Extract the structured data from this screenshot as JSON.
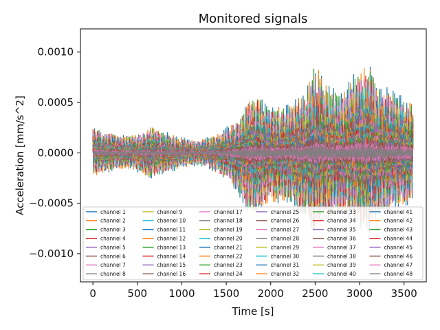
{
  "chart_data": {
    "type": "line",
    "title": "Monitored signals",
    "xlabel": "Time [s]",
    "ylabel": "Acceleration [mm/s^2]",
    "xlim": [
      -140,
      3750
    ],
    "ylim": [
      -0.00128,
      0.00123
    ],
    "xticks": [
      0,
      500,
      1000,
      1500,
      2000,
      2500,
      3000,
      3500
    ],
    "xtick_labels": [
      "0",
      "500",
      "1000",
      "1500",
      "2000",
      "2500",
      "3000",
      "3500"
    ],
    "yticks": [
      0.001,
      0.0005,
      0.0,
      -0.0005,
      -0.001
    ],
    "ytick_labels": [
      "0.0010",
      "0.0005",
      "0.0000",
      "−0.0005",
      "−0.0010"
    ],
    "grid": false,
    "legend_position": "lower center",
    "x_range": [
      0,
      3600
    ],
    "envelope": {
      "x": [
        0,
        200,
        400,
        550,
        650,
        800,
        1000,
        1200,
        1400,
        1550,
        1650,
        1750,
        1850,
        2000,
        2200,
        2400,
        2500,
        2600,
        2800,
        3000,
        3100,
        3200,
        3400,
        3600
      ],
      "upper": [
        0.00025,
        0.0002,
        0.00016,
        0.0002,
        0.00026,
        0.0002,
        0.00014,
        0.00012,
        0.00018,
        0.00028,
        0.00034,
        0.00052,
        0.00058,
        0.00045,
        0.00048,
        0.0006,
        0.00095,
        0.0007,
        0.0006,
        0.00085,
        0.0009,
        0.0007,
        0.0006,
        0.0005
      ],
      "lower": [
        -0.00022,
        -0.00018,
        -0.00015,
        -0.0002,
        -0.00026,
        -0.0002,
        -0.00014,
        -0.00012,
        -0.0002,
        -0.0003,
        -0.00045,
        -0.00062,
        -0.0006,
        -0.0005,
        -0.0005,
        -0.00065,
        -0.00085,
        -0.00068,
        -0.0006,
        -0.00075,
        -0.0008,
        -0.00065,
        -0.00055,
        -0.0005
      ]
    },
    "series": [
      {
        "name": "channel 1",
        "color": "#1f77b4",
        "amp": 1.0
      },
      {
        "name": "channel 2",
        "color": "#ff7f0e",
        "amp": 0.96
      },
      {
        "name": "channel 3",
        "color": "#2ca02c",
        "amp": 0.92
      },
      {
        "name": "channel 4",
        "color": "#d62728",
        "amp": 0.88
      },
      {
        "name": "channel 5",
        "color": "#9467bd",
        "amp": 0.85
      },
      {
        "name": "channel 6",
        "color": "#8c564b",
        "amp": 0.82
      },
      {
        "name": "channel 7",
        "color": "#e377c2",
        "amp": 0.79
      },
      {
        "name": "channel 8",
        "color": "#7f7f7f",
        "amp": 0.76
      },
      {
        "name": "channel 9",
        "color": "#bcbd22",
        "amp": 0.74
      },
      {
        "name": "channel 10",
        "color": "#17becf",
        "amp": 0.72
      },
      {
        "name": "channel 11",
        "color": "#1f77b4",
        "amp": 0.7
      },
      {
        "name": "channel 12",
        "color": "#ff7f0e",
        "amp": 0.68
      },
      {
        "name": "channel 13",
        "color": "#2ca02c",
        "amp": 0.66
      },
      {
        "name": "channel 14",
        "color": "#d62728",
        "amp": 0.64
      },
      {
        "name": "channel 15",
        "color": "#9467bd",
        "amp": 0.62
      },
      {
        "name": "channel 16",
        "color": "#8c564b",
        "amp": 0.6
      },
      {
        "name": "channel 17",
        "color": "#e377c2",
        "amp": 0.58
      },
      {
        "name": "channel 18",
        "color": "#7f7f7f",
        "amp": 0.56
      },
      {
        "name": "channel 19",
        "color": "#bcbd22",
        "amp": 0.54
      },
      {
        "name": "channel 20",
        "color": "#17becf",
        "amp": 0.52
      },
      {
        "name": "channel 21",
        "color": "#1f77b4",
        "amp": 0.5
      },
      {
        "name": "channel 22",
        "color": "#ff7f0e",
        "amp": 0.48
      },
      {
        "name": "channel 23",
        "color": "#2ca02c",
        "amp": 0.46
      },
      {
        "name": "channel 24",
        "color": "#d62728",
        "amp": 0.44
      },
      {
        "name": "channel 25",
        "color": "#9467bd",
        "amp": 0.42
      },
      {
        "name": "channel 26",
        "color": "#8c564b",
        "amp": 0.4
      },
      {
        "name": "channel 27",
        "color": "#e377c2",
        "amp": 0.38
      },
      {
        "name": "channel 28",
        "color": "#7f7f7f",
        "amp": 0.36
      },
      {
        "name": "channel 29",
        "color": "#bcbd22",
        "amp": 0.34
      },
      {
        "name": "channel 30",
        "color": "#17becf",
        "amp": 0.32
      },
      {
        "name": "channel 31",
        "color": "#1f77b4",
        "amp": 0.3
      },
      {
        "name": "channel 32",
        "color": "#ff7f0e",
        "amp": 0.29
      },
      {
        "name": "channel 33",
        "color": "#2ca02c",
        "amp": 0.28
      },
      {
        "name": "channel 34",
        "color": "#d62728",
        "amp": 0.27
      },
      {
        "name": "channel 35",
        "color": "#9467bd",
        "amp": 0.26
      },
      {
        "name": "channel 36",
        "color": "#8c564b",
        "amp": 0.25
      },
      {
        "name": "channel 37",
        "color": "#e377c2",
        "amp": 0.24
      },
      {
        "name": "channel 38",
        "color": "#7f7f7f",
        "amp": 0.23
      },
      {
        "name": "channel 39",
        "color": "#bcbd22",
        "amp": 0.22
      },
      {
        "name": "channel 40",
        "color": "#17becf",
        "amp": 0.21
      },
      {
        "name": "channel 41",
        "color": "#1f77b4",
        "amp": 0.2
      },
      {
        "name": "channel 42",
        "color": "#ff7f0e",
        "amp": 0.19
      },
      {
        "name": "channel 43",
        "color": "#2ca02c",
        "amp": 0.18
      },
      {
        "name": "channel 44",
        "color": "#d62728",
        "amp": 0.17
      },
      {
        "name": "channel 45",
        "color": "#9467bd",
        "amp": 0.16
      },
      {
        "name": "channel 46",
        "color": "#8c564b",
        "amp": 0.15
      },
      {
        "name": "channel 47",
        "color": "#e377c2",
        "amp": 0.12
      },
      {
        "name": "channel 48",
        "color": "#7f7f7f",
        "amp": 0.08
      }
    ]
  }
}
